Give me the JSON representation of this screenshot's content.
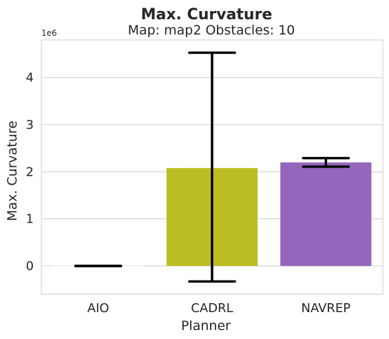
{
  "chart_data": {
    "type": "bar",
    "title": "Max. Curvature",
    "subtitle": "Map: map2 Obstacles: 10",
    "xlabel": "Planner",
    "ylabel": "Max. Curvature",
    "y_scale_label": "1e6",
    "y_scale_factor": 1000000,
    "categories": [
      "AIO",
      "CADRL",
      "NAVREP"
    ],
    "values": [
      0,
      2080000,
      2200000
    ],
    "error_low": [
      0,
      -330000,
      2110000
    ],
    "error_high": [
      0,
      4530000,
      2290000
    ],
    "colors": [
      "#ffffff",
      "#bcbd22",
      "#9467bd"
    ],
    "ylim": [
      -600000,
      4800000
    ],
    "yticks": [
      0,
      1000000,
      2000000,
      3000000,
      4000000
    ],
    "ytick_labels": [
      "0",
      "1",
      "2",
      "3",
      "4"
    ],
    "grid": true
  }
}
